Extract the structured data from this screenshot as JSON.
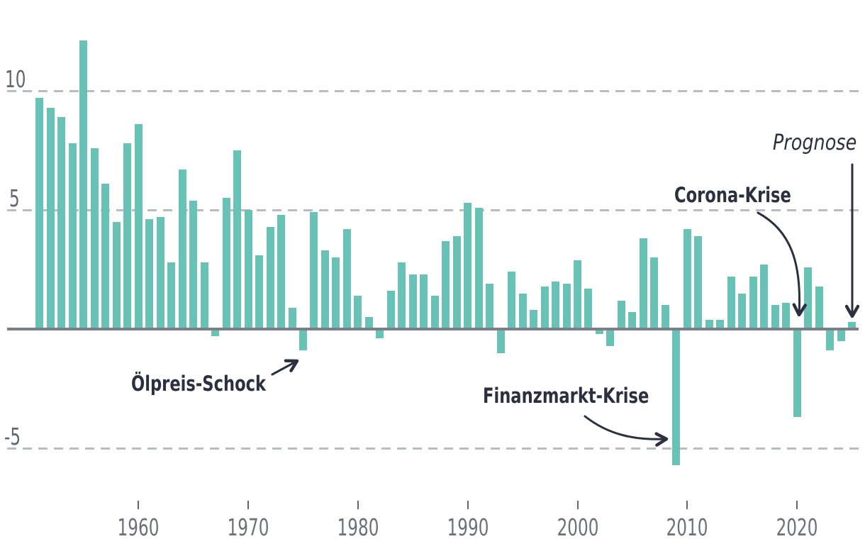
{
  "chart_data": {
    "type": "bar",
    "title": "",
    "x": [
      1951,
      1952,
      1953,
      1954,
      1955,
      1956,
      1957,
      1958,
      1959,
      1960,
      1961,
      1962,
      1963,
      1964,
      1965,
      1966,
      1967,
      1968,
      1969,
      1970,
      1971,
      1972,
      1973,
      1974,
      1975,
      1976,
      1977,
      1978,
      1979,
      1980,
      1981,
      1982,
      1983,
      1984,
      1985,
      1986,
      1987,
      1988,
      1989,
      1990,
      1991,
      1992,
      1993,
      1994,
      1995,
      1996,
      1997,
      1998,
      1999,
      2000,
      2001,
      2002,
      2003,
      2004,
      2005,
      2006,
      2007,
      2008,
      2009,
      2010,
      2011,
      2012,
      2013,
      2014,
      2015,
      2016,
      2017,
      2018,
      2019,
      2020,
      2021,
      2022,
      2023,
      2024,
      2025
    ],
    "values": [
      9.7,
      9.3,
      8.9,
      7.8,
      12.1,
      7.6,
      6.1,
      4.5,
      7.8,
      8.6,
      4.6,
      4.7,
      2.8,
      6.7,
      5.4,
      2.8,
      -0.3,
      5.5,
      7.5,
      5.0,
      3.1,
      4.3,
      4.8,
      0.9,
      -0.9,
      4.9,
      3.3,
      3.0,
      4.2,
      1.4,
      0.5,
      -0.4,
      1.6,
      2.8,
      2.3,
      2.3,
      1.4,
      3.7,
      3.9,
      5.3,
      5.1,
      1.9,
      -1.0,
      2.4,
      1.5,
      0.8,
      1.8,
      2.0,
      1.9,
      2.9,
      1.7,
      -0.2,
      -0.7,
      1.2,
      0.7,
      3.8,
      3.0,
      1.0,
      -5.7,
      4.2,
      3.9,
      0.4,
      0.4,
      2.2,
      1.5,
      2.2,
      2.7,
      1.0,
      1.1,
      -3.7,
      2.6,
      1.8,
      -0.9,
      -0.5,
      0.3
    ],
    "ylim": [
      -7.5,
      12.7
    ],
    "grid_values": [
      10,
      5,
      -5
    ],
    "grid_labels": [
      "10",
      "5",
      "-5"
    ],
    "x_tick_years": [
      1960,
      1970,
      1980,
      1990,
      2000,
      2010,
      2020
    ],
    "x_tick_labels": [
      "1960",
      "1970",
      "1980",
      "1990",
      "2000",
      "2010",
      "2020"
    ],
    "legend": [],
    "annotations": [
      {
        "text": "Ölpreis-Schock",
        "emphasis": "bold",
        "target_year": 1975
      },
      {
        "text": "Finanzmarkt-Krise",
        "emphasis": "bold",
        "target_year": 2009
      },
      {
        "text": "Corona-Krise",
        "emphasis": "bold",
        "target_year": 2020
      },
      {
        "text": "Prognose",
        "emphasis": "italic",
        "target_year": 2025
      }
    ]
  },
  "colors": {
    "bar": "#69c2b6",
    "annotation_text": "#2b2f40",
    "axis_line": "#7b7f89",
    "gridline": "#b9bcc2",
    "axis_label": "#63666f",
    "background": "#ffffff"
  }
}
